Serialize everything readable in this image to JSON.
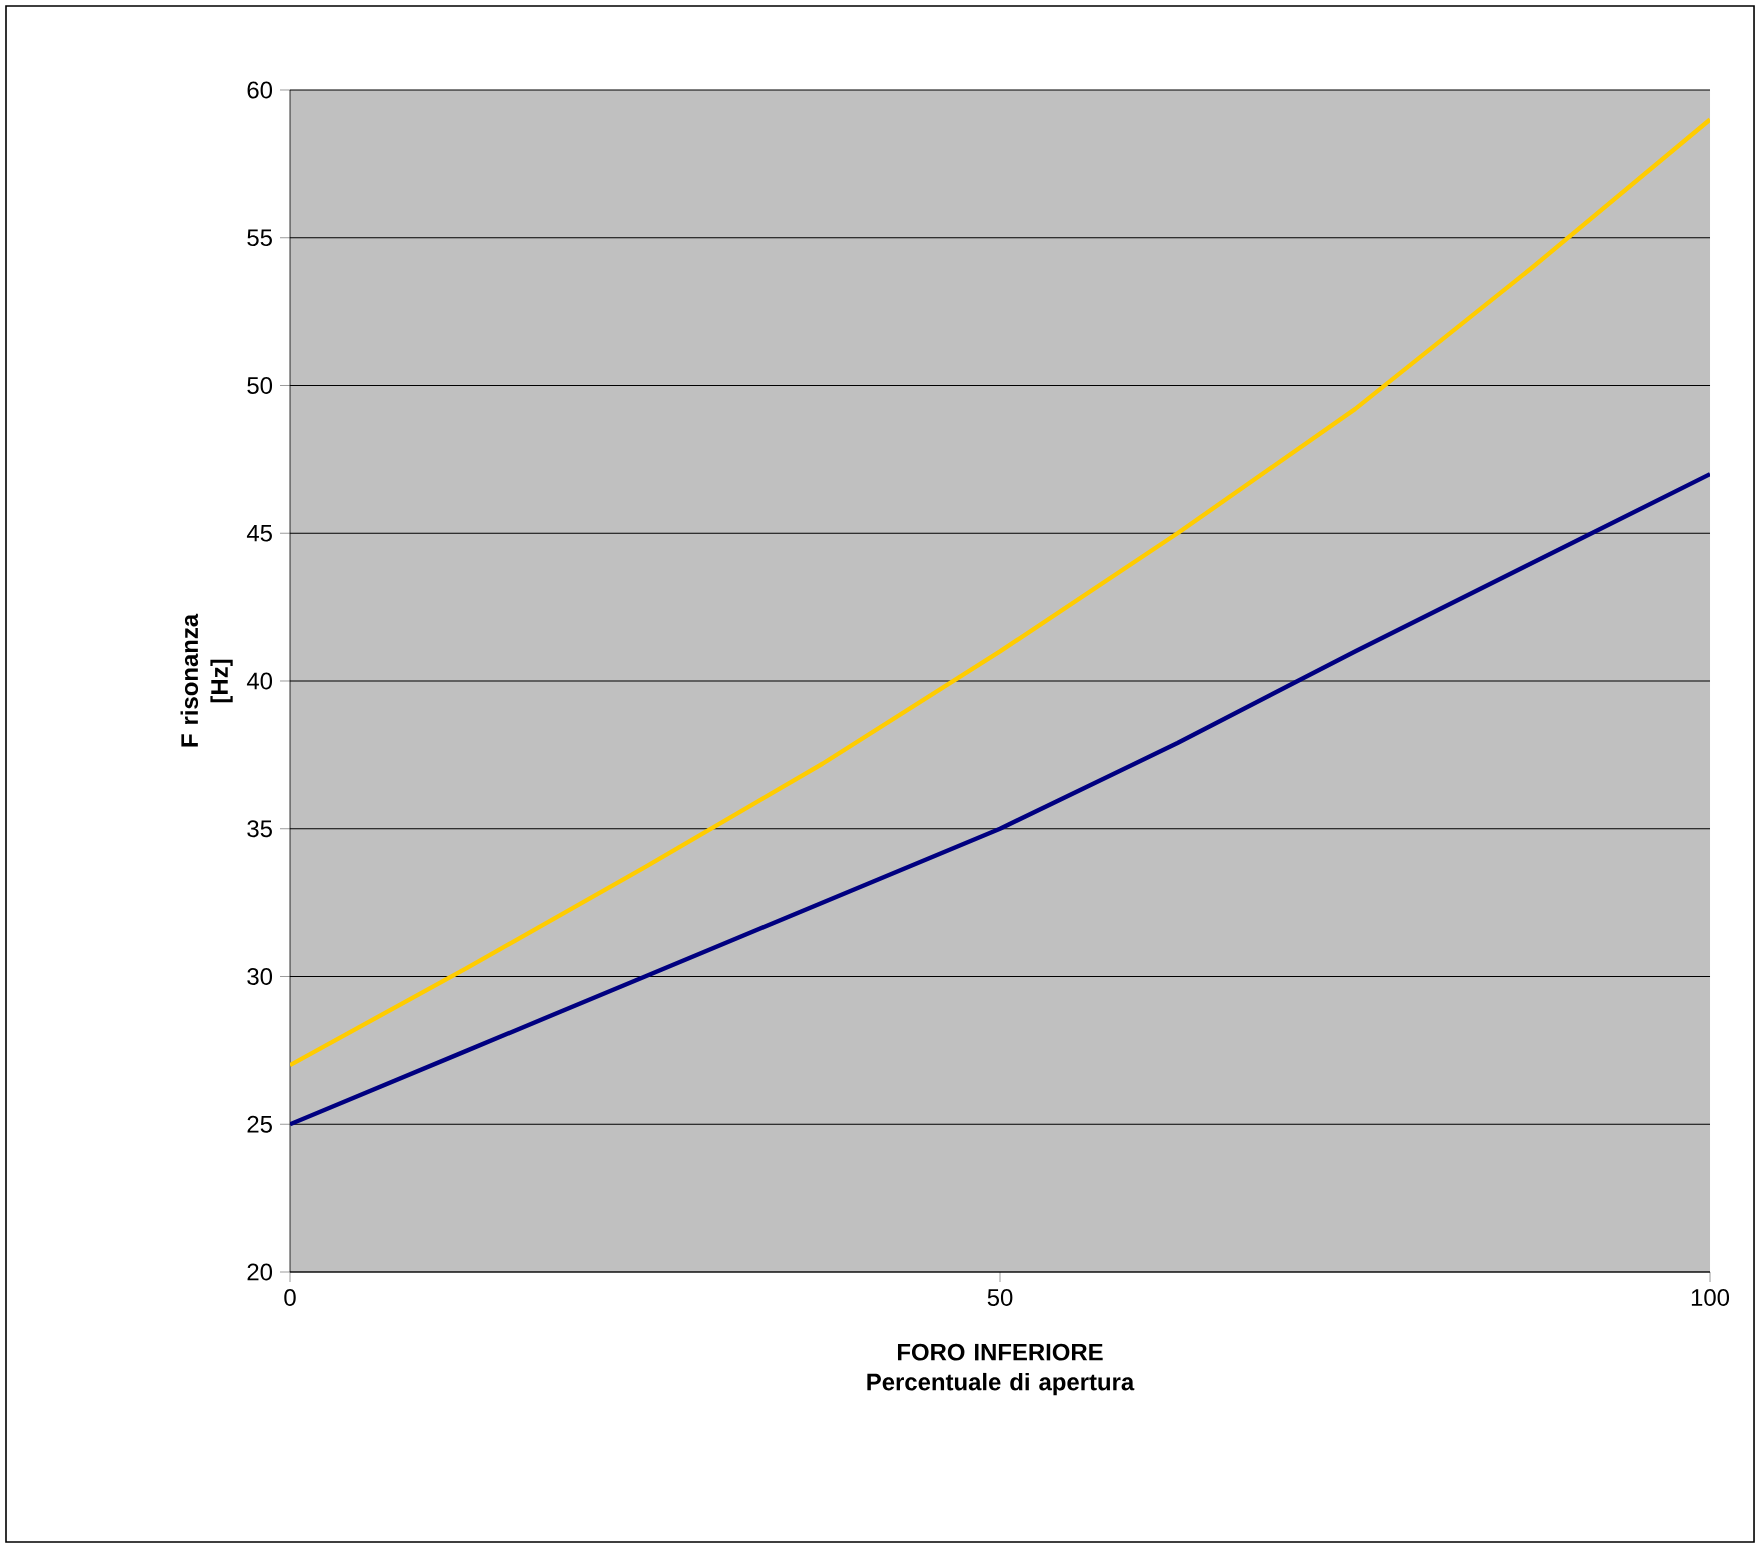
{
  "chart_data": {
    "type": "line",
    "xlabel": "FORO INFERIORE Percentuale di apertura",
    "ylabel": "F risonanza [Hz]",
    "xlim": [
      0,
      100
    ],
    "xticks": [
      0,
      50,
      100
    ],
    "ylim": [
      20,
      60
    ],
    "yticks": [
      20,
      25,
      30,
      35,
      40,
      45,
      50,
      55,
      60
    ],
    "grid": "y",
    "marker": "none",
    "line_style": "solid",
    "x": [
      0,
      12.5,
      25,
      37.5,
      50,
      62.5,
      75,
      87.5,
      100
    ],
    "series": [
      {
        "color": "#ffcc00",
        "values": [
          27,
          30.3,
          33.7,
          37.2,
          41,
          45,
          49.2,
          54,
          59
        ]
      },
      {
        "color": "#000080",
        "values": [
          25,
          27.5,
          30,
          32.5,
          35,
          37.9,
          41,
          44,
          47
        ]
      }
    ]
  }
}
